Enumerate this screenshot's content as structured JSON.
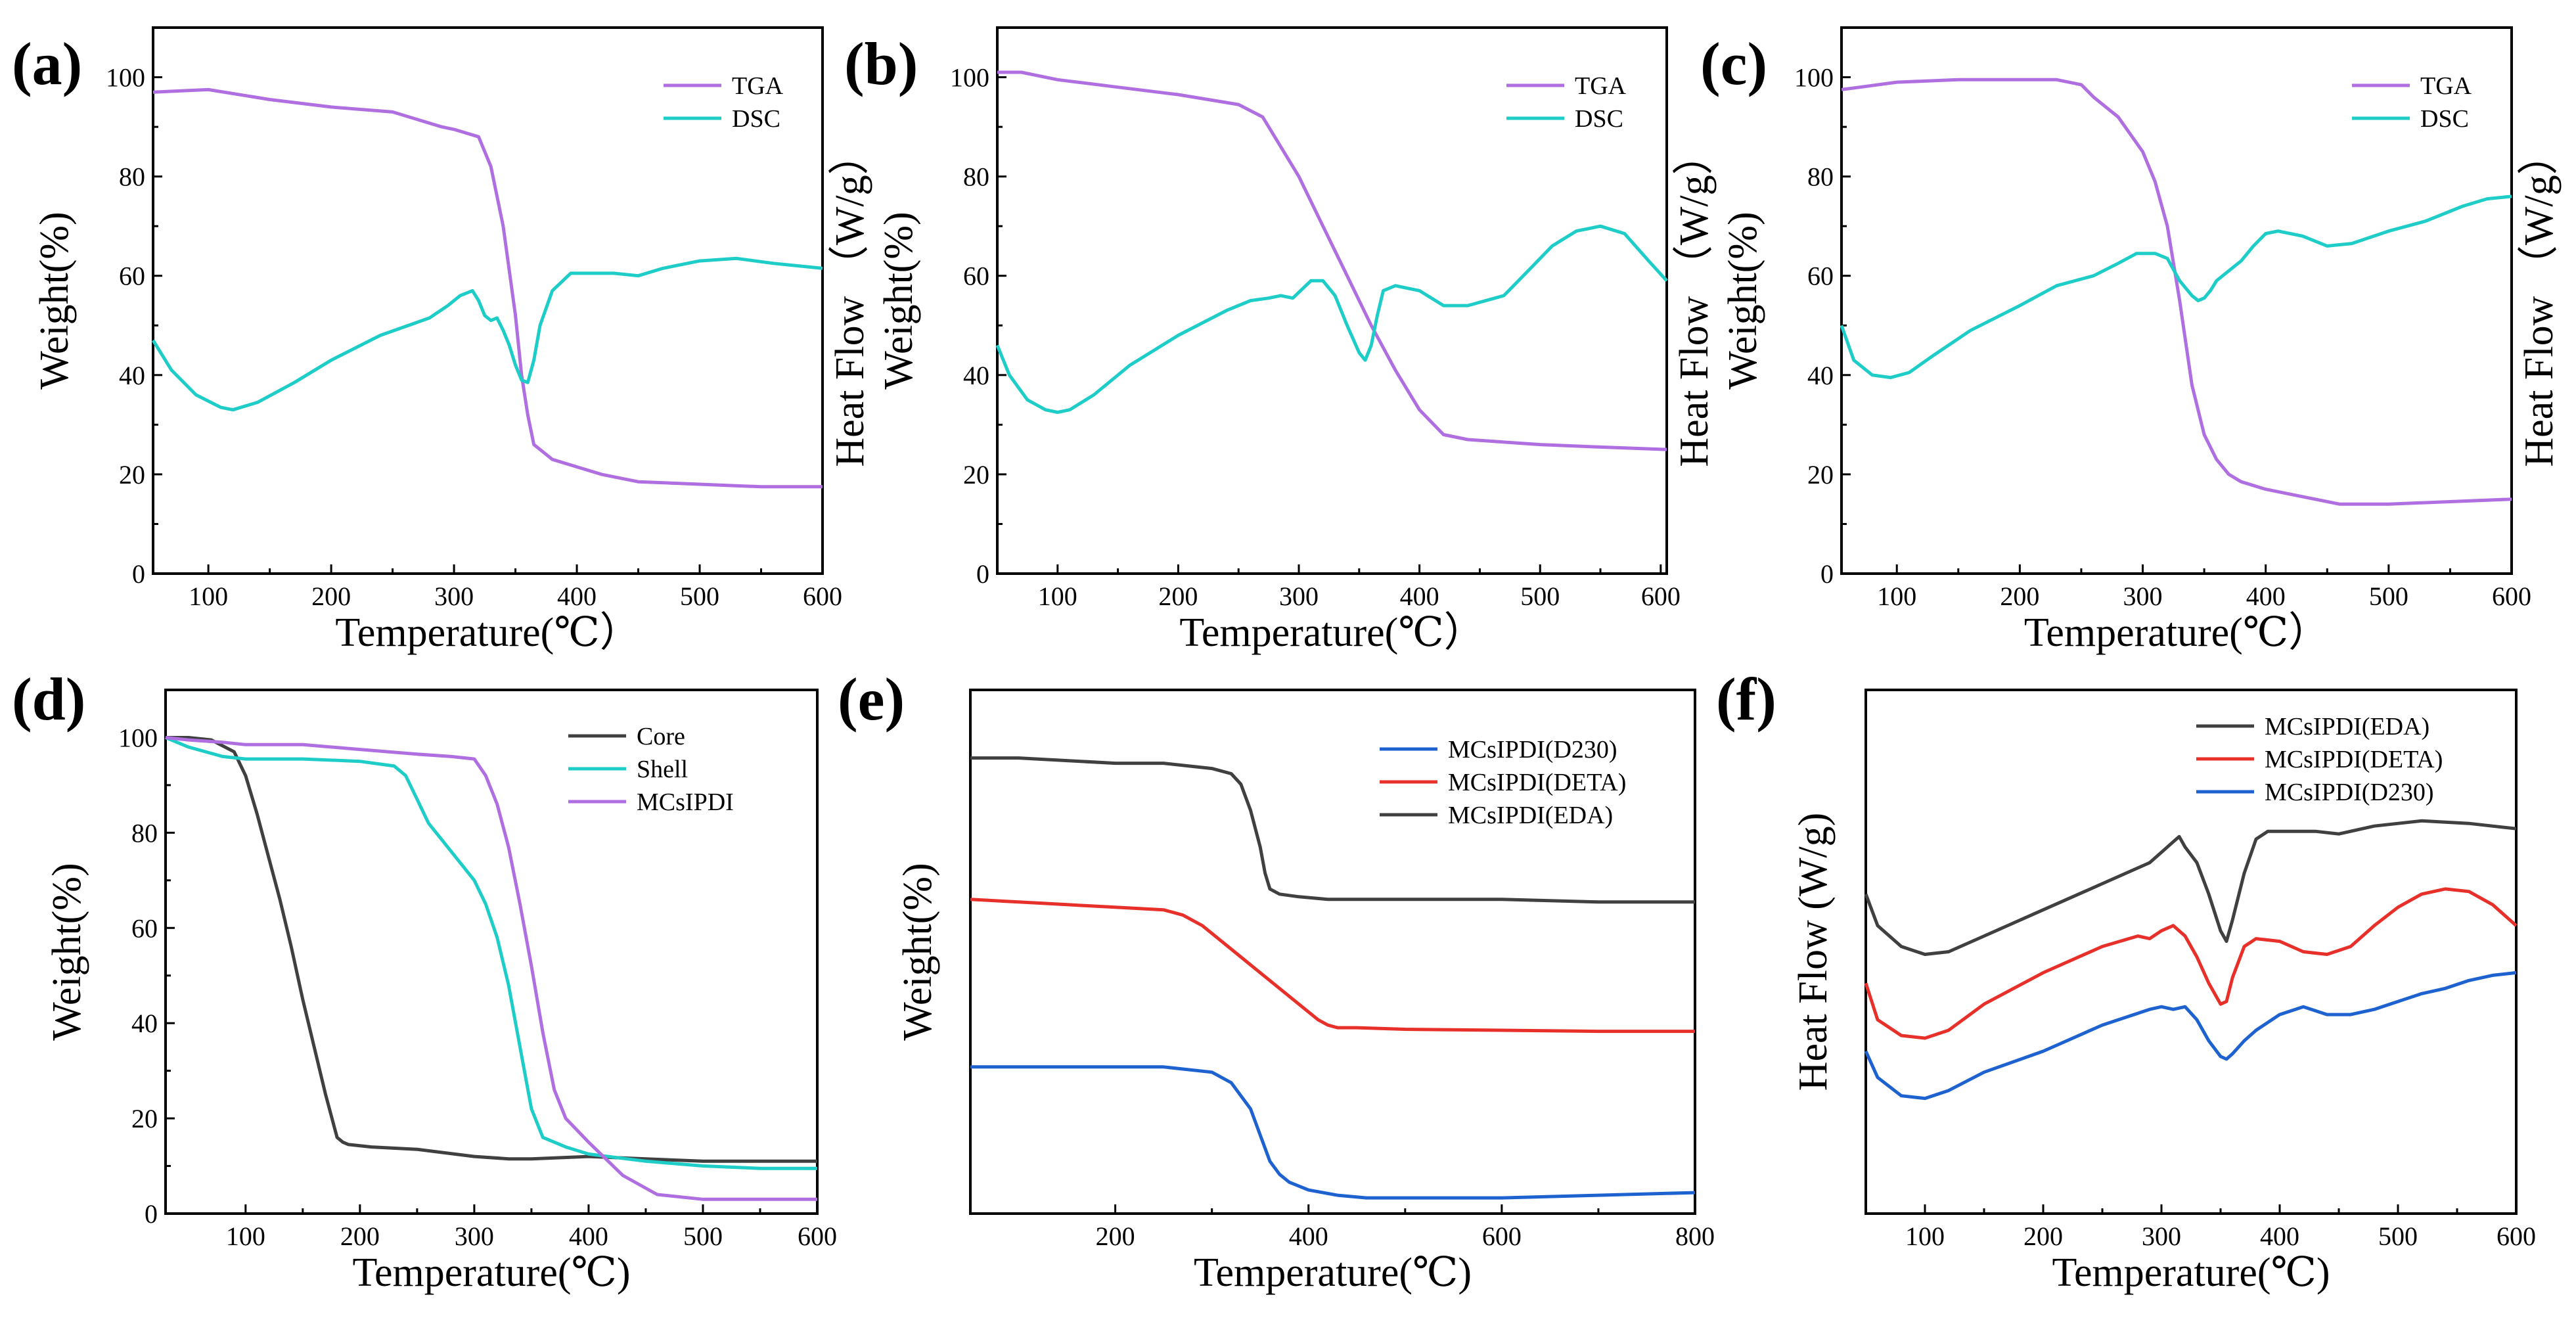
{
  "figure": {
    "panels": [
      {
        "id": "a",
        "label": "(a)",
        "type": "line",
        "xlabel": "Temperature(℃）",
        "ylabel": "Weight(%)",
        "ylabel2": "Heat Flow （W/g）",
        "xlim": [
          55,
          600
        ],
        "ylim": [
          0,
          110
        ],
        "xticks": [
          100,
          200,
          300,
          400,
          500,
          600
        ],
        "yticks": [
          0,
          20,
          40,
          60,
          80,
          100
        ],
        "series": [
          {
            "name": "TGA",
            "color": "#b06fe0",
            "x": [
              55,
              100,
              150,
              200,
              250,
              290,
              300,
              320,
              330,
              340,
              350,
              355,
              360,
              365,
              380,
              420,
              450,
              500,
              550,
              600
            ],
            "y": [
              97,
              97.5,
              95.5,
              94,
              93,
              90,
              89.5,
              88,
              82,
              70,
              52,
              40,
              32,
              26,
              23,
              20,
              18.5,
              18,
              17.5,
              17.5
            ]
          },
          {
            "name": "DSC",
            "color": "#1ecdc8",
            "x": [
              55,
              70,
              90,
              110,
              120,
              140,
              170,
              200,
              240,
              280,
              295,
              305,
              315,
              320,
              325,
              330,
              335,
              340,
              345,
              350,
              355,
              360,
              365,
              370,
              380,
              395,
              410,
              430,
              450,
              470,
              500,
              530,
              560,
              600
            ],
            "y": [
              47,
              41,
              36,
              33.5,
              33,
              34.5,
              38.5,
              43,
              48,
              51.5,
              54,
              56,
              57,
              55,
              52,
              51,
              51.5,
              49,
              46,
              42,
              39,
              38.5,
              43,
              50,
              57,
              60.5,
              60.5,
              60.5,
              60,
              61.5,
              63,
              63.5,
              62.5,
              61.5
            ]
          }
        ]
      },
      {
        "id": "b",
        "label": "(b)",
        "type": "line",
        "xlabel": "Temperature(℃）",
        "ylabel": "Weight(%)",
        "ylabel2": "Heat Flow （W/g）",
        "xlim": [
          50,
          605
        ],
        "ylim": [
          0,
          110
        ],
        "xticks": [
          100,
          200,
          300,
          400,
          500,
          600
        ],
        "yticks": [
          0,
          20,
          40,
          60,
          80,
          100
        ],
        "series": [
          {
            "name": "TGA",
            "color": "#b06fe0",
            "x": [
              50,
              70,
              100,
              150,
              200,
              250,
              270,
              280,
              300,
              320,
              340,
              360,
              380,
              400,
              420,
              440,
              500,
              550,
              605
            ],
            "y": [
              101,
              101,
              99.5,
              98,
              96.5,
              94.5,
              92,
              88,
              80,
              70,
              60,
              50,
              41,
              33,
              28,
              27,
              26,
              25.5,
              25
            ]
          },
          {
            "name": "DSC",
            "color": "#1ecdc8",
            "x": [
              50,
              60,
              75,
              90,
              100,
              110,
              130,
              160,
              200,
              240,
              260,
              275,
              285,
              295,
              310,
              320,
              330,
              340,
              350,
              355,
              360,
              365,
              370,
              380,
              400,
              420,
              440,
              470,
              490,
              510,
              530,
              550,
              570,
              590,
              605
            ],
            "y": [
              46,
              40,
              35,
              33,
              32.5,
              33,
              36,
              42,
              48,
              53,
              55,
              55.5,
              56,
              55.5,
              59,
              59,
              56,
              50,
              44.5,
              43,
              46,
              52,
              57,
              58,
              57,
              54,
              54,
              56,
              61,
              66,
              69,
              70,
              68.5,
              63,
              59
            ]
          }
        ]
      },
      {
        "id": "c",
        "label": "(c)",
        "type": "line",
        "xlabel": "Temperature(℃）",
        "ylabel": "Weight(%)",
        "ylabel2": "Heat Flow （W/g）",
        "xlim": [
          55,
          600
        ],
        "ylim": [
          0,
          110
        ],
        "xticks": [
          100,
          200,
          300,
          400,
          500,
          600
        ],
        "yticks": [
          0,
          20,
          40,
          60,
          80,
          100
        ],
        "series": [
          {
            "name": "TGA",
            "color": "#b06fe0",
            "x": [
              55,
              70,
              100,
              150,
              200,
              230,
              250,
              260,
              280,
              300,
              310,
              320,
              330,
              340,
              350,
              360,
              370,
              380,
              400,
              430,
              460,
              500,
              550,
              600
            ],
            "y": [
              97.5,
              98,
              99,
              99.5,
              99.5,
              99.5,
              98.5,
              96,
              92,
              85,
              79,
              70,
              55,
              38,
              28,
              23,
              20,
              18.5,
              17,
              15.5,
              14,
              14,
              14.5,
              15
            ]
          },
          {
            "name": "DSC",
            "color": "#1ecdc8",
            "x": [
              55,
              65,
              80,
              95,
              110,
              130,
              160,
              200,
              230,
              260,
              280,
              295,
              310,
              320,
              330,
              340,
              345,
              350,
              355,
              360,
              370,
              380,
              390,
              400,
              410,
              430,
              450,
              470,
              500,
              530,
              560,
              580,
              600
            ],
            "y": [
              50,
              43,
              40,
              39.5,
              40.5,
              44,
              49,
              54,
              58,
              60,
              62.5,
              64.5,
              64.5,
              63.5,
              59,
              56,
              55,
              55.5,
              57,
              59,
              61,
              63,
              66,
              68.5,
              69,
              68,
              66,
              66.5,
              69,
              71,
              74,
              75.5,
              76
            ]
          }
        ]
      },
      {
        "id": "d",
        "label": "(d)",
        "type": "line",
        "xlabel": "Temperature(℃)",
        "ylabel": "Weight(%)",
        "xlim": [
          30,
          600
        ],
        "ylim": [
          0,
          110
        ],
        "xticks": [
          100,
          200,
          300,
          400,
          500,
          600
        ],
        "yticks": [
          0,
          20,
          40,
          60,
          80,
          100
        ],
        "series": [
          {
            "name": "Core",
            "color": "#404040",
            "x": [
              30,
              50,
              70,
              90,
              100,
              110,
              120,
              130,
              140,
              150,
              160,
              170,
              180,
              185,
              190,
              210,
              250,
              300,
              330,
              350,
              400,
              450,
              500,
              550,
              600
            ],
            "y": [
              100,
              100,
              99.5,
              97,
              92,
              84,
              75,
              66,
              56,
              45,
              35,
              25,
              16,
              15,
              14.5,
              14,
              13.5,
              12,
              11.5,
              11.5,
              12,
              11.5,
              11,
              11,
              11
            ]
          },
          {
            "name": "Shell",
            "color": "#1ecdc8",
            "x": [
              30,
              50,
              80,
              100,
              150,
              200,
              230,
              240,
              250,
              260,
              270,
              280,
              300,
              310,
              320,
              330,
              340,
              350,
              360,
              380,
              400,
              450,
              500,
              550,
              600
            ],
            "y": [
              100,
              98,
              96,
              95.5,
              95.5,
              95,
              94,
              92,
              87,
              82,
              79,
              76,
              70,
              65,
              58,
              48,
              35,
              22,
              16,
              14,
              12.5,
              11,
              10,
              9.5,
              9.5
            ]
          },
          {
            "name": "MCsIPDI",
            "color": "#b06fe0",
            "x": [
              30,
              50,
              80,
              100,
              150,
              200,
              250,
              280,
              300,
              310,
              320,
              330,
              340,
              350,
              360,
              370,
              380,
              400,
              430,
              460,
              500,
              550,
              600
            ],
            "y": [
              100,
              99.5,
              99,
              98.5,
              98.5,
              97.5,
              96.5,
              96,
              95.5,
              92,
              86,
              77,
              65,
              52,
              38,
              26,
              20,
              15,
              8,
              4,
              3,
              3,
              3
            ]
          }
        ]
      },
      {
        "id": "e",
        "label": "(e)",
        "type": "line",
        "xlabel": "Temperature(℃)",
        "ylabel": "Weight(%)",
        "xlim": [
          50,
          800
        ],
        "ylim": [
          0,
          100
        ],
        "xticks": [
          200,
          400,
          600,
          800
        ],
        "yticks": [],
        "series": [
          {
            "name": "MCsIPDI(D230)",
            "color": "#1e62d0",
            "x": [
              50,
              100,
              150,
              200,
              250,
              300,
              320,
              340,
              350,
              360,
              370,
              380,
              400,
              430,
              460,
              500,
              600,
              700,
              800
            ],
            "y": [
              28,
              28,
              28,
              28,
              28,
              27,
              25,
              20,
              15,
              10,
              7.5,
              6,
              4.5,
              3.5,
              3,
              3,
              3,
              3.5,
              4
            ]
          },
          {
            "name": "MCsIPDI(DETA)",
            "color": "#e8302a",
            "x": [
              50,
              100,
              150,
              200,
              250,
              270,
              290,
              310,
              330,
              350,
              370,
              390,
              410,
              420,
              430,
              450,
              500,
              600,
              700,
              800
            ],
            "y": [
              60,
              59.5,
              59,
              58.5,
              58,
              57,
              55,
              52,
              49,
              46,
              43,
              40,
              37,
              36,
              35.5,
              35.5,
              35.2,
              35,
              34.8,
              34.8
            ]
          },
          {
            "name": "MCsIPDI(EDA)",
            "color": "#404040",
            "x": [
              50,
              100,
              150,
              200,
              250,
              300,
              320,
              330,
              340,
              350,
              355,
              360,
              370,
              390,
              420,
              460,
              500,
              600,
              700,
              800
            ],
            "y": [
              87,
              87,
              86.5,
              86,
              86,
              85,
              84,
              82,
              77,
              70,
              65,
              62,
              61,
              60.5,
              60,
              60,
              60,
              60,
              59.5,
              59.5
            ]
          }
        ]
      },
      {
        "id": "f",
        "label": "(f)",
        "type": "line",
        "xlabel": "Temperature(℃)",
        "ylabel": "Heat Flow (W/g)",
        "xlim": [
          50,
          600
        ],
        "ylim": [
          0,
          100
        ],
        "xticks": [
          100,
          200,
          300,
          400,
          500,
          600
        ],
        "yticks": [],
        "series": [
          {
            "name": "MCsIPDI(EDA)",
            "color": "#404040",
            "x": [
              50,
              60,
              80,
              100,
              120,
              150,
              200,
              250,
              290,
              300,
              310,
              315,
              320,
              330,
              340,
              350,
              355,
              360,
              370,
              380,
              390,
              400,
              430,
              450,
              480,
              520,
              560,
              600
            ],
            "y": [
              61,
              55,
              51,
              49.5,
              50,
              53,
              58,
              63,
              67,
              69,
              71,
              72,
              70,
              67,
              61,
              54,
              52,
              56,
              65,
              71.5,
              73,
              73,
              73,
              72.5,
              74,
              75,
              74.5,
              73.5
            ]
          },
          {
            "name": "MCsIPDI(DETA)",
            "color": "#e8302a",
            "x": [
              50,
              60,
              80,
              100,
              120,
              150,
              200,
              250,
              280,
              290,
              300,
              310,
              320,
              330,
              340,
              350,
              355,
              360,
              370,
              380,
              400,
              420,
              440,
              460,
              480,
              500,
              520,
              540,
              560,
              580,
              600
            ],
            "y": [
              44,
              37,
              34,
              33.5,
              35,
              40,
              46,
              51,
              53,
              52.5,
              54,
              55,
              53,
              49,
              44,
              40,
              40.5,
              45,
              51,
              52.5,
              52,
              50,
              49.5,
              51,
              55,
              58.5,
              61,
              62,
              61.5,
              59,
              55
            ]
          },
          {
            "name": "MCsIPDI(D230)",
            "color": "#1e62d0",
            "x": [
              50,
              60,
              80,
              100,
              120,
              150,
              200,
              250,
              290,
              300,
              310,
              320,
              330,
              340,
              350,
              355,
              360,
              370,
              380,
              400,
              420,
              440,
              460,
              480,
              500,
              520,
              540,
              560,
              580,
              600
            ],
            "y": [
              31,
              26,
              22.5,
              22,
              23.5,
              27,
              31,
              36,
              39,
              39.5,
              39,
              39.5,
              37,
              33,
              30,
              29.5,
              30.5,
              33,
              35,
              38,
              39.5,
              38,
              38,
              39,
              40.5,
              42,
              43,
              44.5,
              45.5,
              46
            ]
          }
        ]
      }
    ]
  }
}
